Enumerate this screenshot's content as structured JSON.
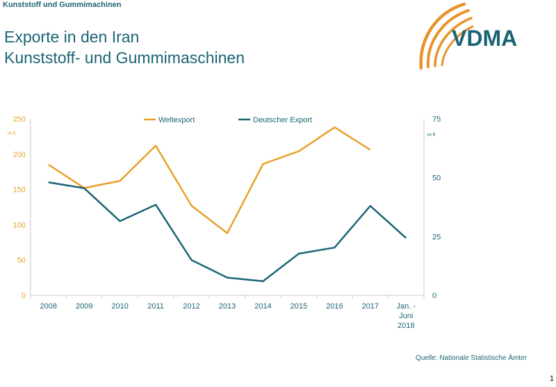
{
  "header": {
    "tag": "Kunststoff und Gummimachinen"
  },
  "title": {
    "line1": "Exporte in den Iran",
    "line2": "Kunststoff- und Gummimaschinen"
  },
  "logo": {
    "text": "VDMA"
  },
  "source": "Quelle: Nationale Statistische Ämter",
  "page_number": "1",
  "colors": {
    "orange": "#e8a02a",
    "teal": "#1b6475",
    "axis": "#c9c9c9"
  },
  "chart_data": {
    "type": "line",
    "title": "",
    "categories": [
      "2008",
      "2009",
      "2010",
      "2011",
      "2012",
      "2013",
      "2014",
      "2015",
      "2016",
      "2017",
      "Jan. - Juni 2018"
    ],
    "category_lines": [
      [
        "2008"
      ],
      [
        "2009"
      ],
      [
        "2010"
      ],
      [
        "2011"
      ],
      [
        "2012"
      ],
      [
        "2013"
      ],
      [
        "2014"
      ],
      [
        "2015"
      ],
      [
        "2016"
      ],
      [
        "2017"
      ],
      [
        "Jan. -",
        "Juni",
        "2018"
      ]
    ],
    "y_left": {
      "min": 0,
      "max": 250,
      "ticks": [
        0,
        50,
        100,
        150,
        200,
        250
      ],
      "unit": "m €"
    },
    "y_right": {
      "min": 0,
      "max": 75,
      "ticks": [
        0,
        25,
        50,
        75
      ],
      "unit": "m €"
    },
    "legend": {
      "position": "top"
    },
    "grid": false,
    "series": [
      {
        "name": "Weltexport",
        "axis": "left",
        "color": "#e8a02a",
        "values": [
          185,
          152,
          162,
          212,
          127,
          88,
          186,
          204,
          238,
          206,
          null
        ]
      },
      {
        "name": "Deutscher Export",
        "axis": "right",
        "color": "#1b6475",
        "values": [
          48,
          45.5,
          31.5,
          38.5,
          15,
          7.5,
          6,
          17.7,
          20.3,
          38,
          24.3
        ]
      }
    ]
  }
}
